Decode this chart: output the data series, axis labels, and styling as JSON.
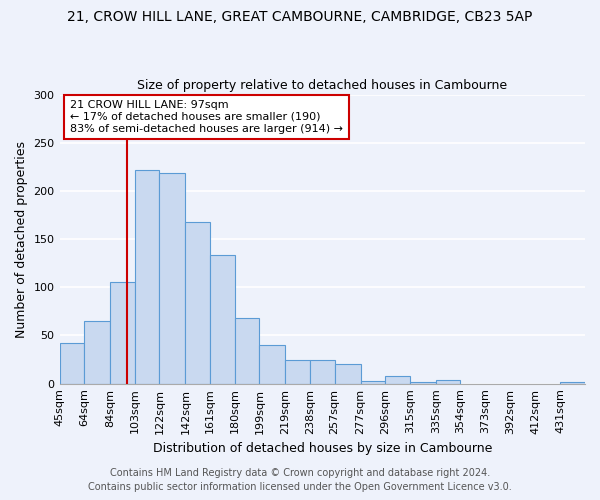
{
  "title1": "21, CROW HILL LANE, GREAT CAMBOURNE, CAMBRIDGE, CB23 5AP",
  "title2": "Size of property relative to detached houses in Cambourne",
  "xlabel": "Distribution of detached houses by size in Cambourne",
  "ylabel": "Number of detached properties",
  "bin_labels": [
    "45sqm",
    "64sqm",
    "84sqm",
    "103sqm",
    "122sqm",
    "142sqm",
    "161sqm",
    "180sqm",
    "199sqm",
    "219sqm",
    "238sqm",
    "257sqm",
    "277sqm",
    "296sqm",
    "315sqm",
    "335sqm",
    "354sqm",
    "373sqm",
    "392sqm",
    "412sqm",
    "431sqm"
  ],
  "bin_edges": [
    45,
    64,
    84,
    103,
    122,
    142,
    161,
    180,
    199,
    219,
    238,
    257,
    277,
    296,
    315,
    335,
    354,
    373,
    392,
    412,
    431,
    450
  ],
  "bar_heights": [
    42,
    65,
    105,
    222,
    219,
    168,
    134,
    68,
    40,
    25,
    25,
    20,
    3,
    8,
    2,
    4,
    0,
    0,
    0,
    0,
    2
  ],
  "bar_facecolor": "#c9d9f0",
  "bar_edgecolor": "#5b9bd5",
  "property_line_x": 97,
  "property_line_color": "#cc0000",
  "annotation_line1": "21 CROW HILL LANE: 97sqm",
  "annotation_line2": "← 17% of detached houses are smaller (190)",
  "annotation_line3": "83% of semi-detached houses are larger (914) →",
  "annotation_box_edgecolor": "#cc0000",
  "annotation_box_facecolor": "#ffffff",
  "ylim": [
    0,
    300
  ],
  "yticks": [
    0,
    50,
    100,
    150,
    200,
    250,
    300
  ],
  "footer1": "Contains HM Land Registry data © Crown copyright and database right 2024.",
  "footer2": "Contains public sector information licensed under the Open Government Licence v3.0.",
  "background_color": "#eef2fb",
  "grid_color": "#ffffff",
  "title_fontsize": 10,
  "subtitle_fontsize": 9,
  "axis_label_fontsize": 9,
  "tick_fontsize": 8,
  "annotation_fontsize": 8,
  "footer_fontsize": 7
}
